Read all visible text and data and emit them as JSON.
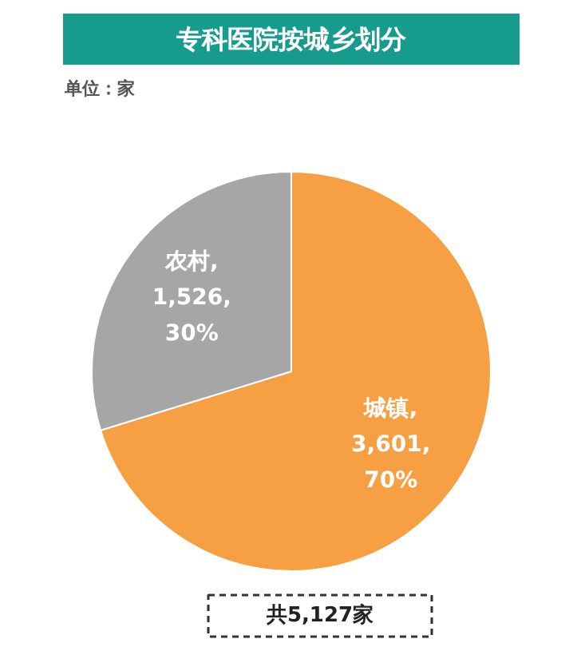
{
  "chart_data": {
    "type": "pie",
    "title": "专科医院按城乡划分",
    "subtitle": "单位：家",
    "categories": [
      "城镇",
      "农村"
    ],
    "values": [
      3601,
      1526
    ],
    "colors": [
      "#f7a043",
      "#a6a6a6"
    ],
    "value_labels": [
      ",\n3,601,\n70%",
      ",\n1,526,\n30%"
    ],
    "annotations": [
      "共5,127家"
    ]
  }
}
